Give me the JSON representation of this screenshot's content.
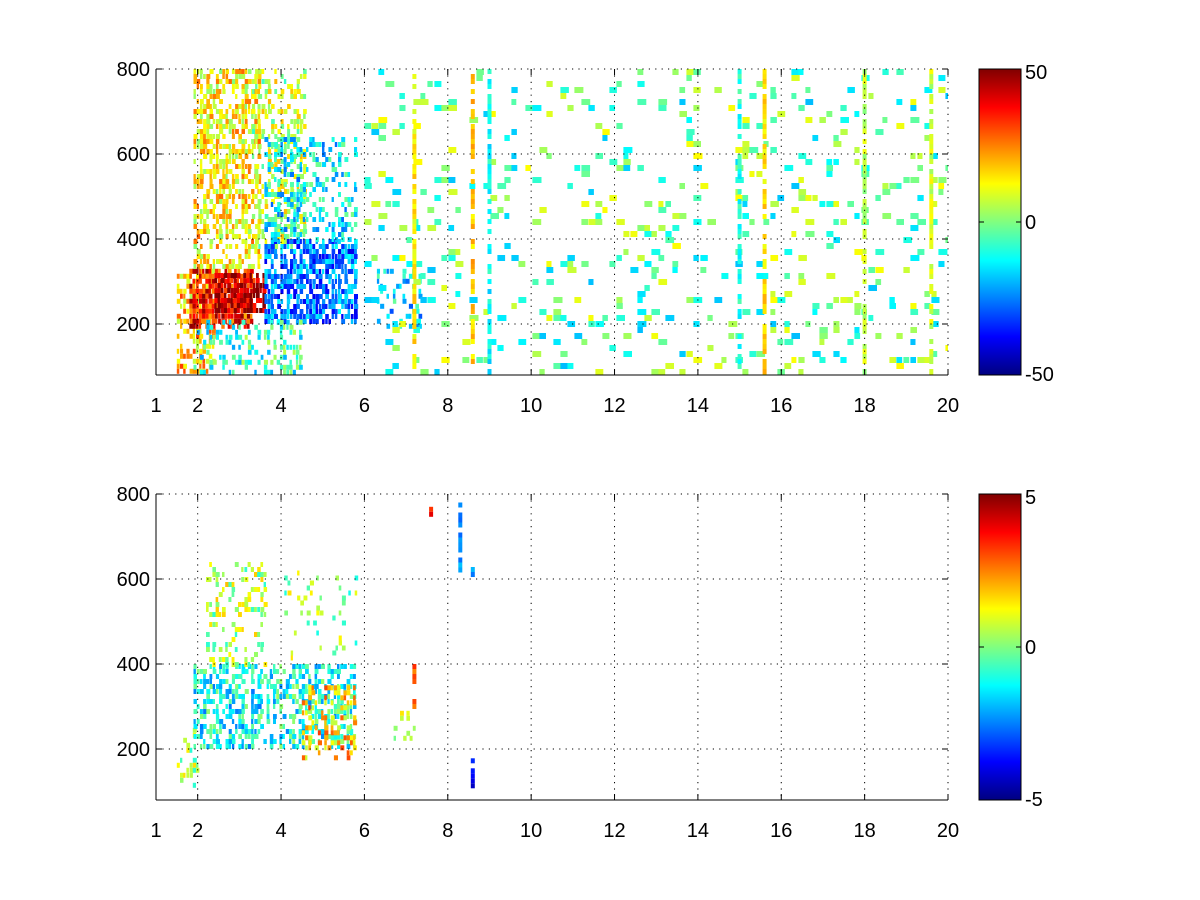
{
  "chart_data": [
    {
      "type": "heatmap",
      "title": "",
      "xlabel": "",
      "ylabel": "",
      "xlim": [
        1,
        20
      ],
      "ylim": [
        80,
        800
      ],
      "x_ticks": [
        "1",
        "2",
        "4",
        "6",
        "8",
        "10",
        "12",
        "14",
        "16",
        "18",
        "20"
      ],
      "x_tick_values": [
        1,
        2,
        4,
        6,
        8,
        10,
        12,
        14,
        16,
        18,
        20
      ],
      "y_ticks": [
        "200",
        "400",
        "600",
        "800"
      ],
      "y_tick_values": [
        200,
        400,
        600,
        800
      ],
      "grid": true,
      "colormap": "jet",
      "colorbar": {
        "placement": "right",
        "min": -50,
        "max": 50,
        "tick_labels": [
          "50",
          "0",
          "-50"
        ],
        "tick_values": [
          50,
          0,
          -50
        ]
      },
      "regions": [
        {
          "x": [
            1.5,
            2.4
          ],
          "y": [
            90,
            330
          ],
          "value": 18,
          "density": 0.55
        },
        {
          "x": [
            1.8,
            3.3
          ],
          "y": [
            200,
            330
          ],
          "value": 35,
          "density": 0.8
        },
        {
          "x": [
            2.4,
            3.6
          ],
          "y": [
            230,
            320
          ],
          "value": 44,
          "density": 0.85
        },
        {
          "x": [
            1.9,
            3.5
          ],
          "y": [
            330,
            800
          ],
          "value": 14,
          "density": 0.55
        },
        {
          "x": [
            3.3,
            4.6
          ],
          "y": [
            380,
            800
          ],
          "value": 6,
          "density": 0.4
        },
        {
          "x": [
            3.6,
            5.8
          ],
          "y": [
            200,
            400
          ],
          "value": -26,
          "density": 0.65
        },
        {
          "x": [
            3.6,
            5.8
          ],
          "y": [
            400,
            640
          ],
          "value": -14,
          "density": 0.35
        },
        {
          "x": [
            1.9,
            4.5
          ],
          "y": [
            90,
            210
          ],
          "value": -8,
          "density": 0.3
        },
        {
          "x": [
            6.3,
            7.3
          ],
          "y": [
            200,
            330
          ],
          "value": -16,
          "density": 0.3
        },
        {
          "x": [
            6.0,
            20.0
          ],
          "y": [
            80,
            800
          ],
          "value": -3,
          "density": 0.12
        }
      ],
      "streaks": [
        {
          "x": 7.2,
          "value": 14
        },
        {
          "x": 8.6,
          "value": 18
        },
        {
          "x": 9.0,
          "value": -12
        },
        {
          "x": 15.0,
          "value": -10
        },
        {
          "x": 15.6,
          "value": 16
        },
        {
          "x": 18.0,
          "value": 6
        },
        {
          "x": 19.6,
          "value": 8
        }
      ]
    },
    {
      "type": "heatmap",
      "title": "",
      "xlabel": "",
      "ylabel": "",
      "xlim": [
        1,
        20
      ],
      "ylim": [
        80,
        800
      ],
      "x_ticks": [
        "1",
        "2",
        "4",
        "6",
        "8",
        "10",
        "12",
        "14",
        "16",
        "18",
        "20"
      ],
      "x_tick_values": [
        1,
        2,
        4,
        6,
        8,
        10,
        12,
        14,
        16,
        18,
        20
      ],
      "y_ticks": [
        "200",
        "400",
        "600",
        "800"
      ],
      "y_tick_values": [
        200,
        400,
        600,
        800
      ],
      "grid": true,
      "colormap": "jet",
      "colorbar": {
        "placement": "right",
        "min": -5,
        "max": 5,
        "tick_labels": [
          "5",
          "0",
          "-5"
        ],
        "tick_values": [
          5,
          0,
          -5
        ]
      },
      "regions": [
        {
          "x": [
            1.5,
            2.0
          ],
          "y": [
            110,
            250
          ],
          "value": 0.5,
          "density": 0.3
        },
        {
          "x": [
            1.9,
            3.5
          ],
          "y": [
            200,
            400
          ],
          "value": -1.2,
          "density": 0.55
        },
        {
          "x": [
            2.2,
            3.6
          ],
          "y": [
            400,
            640
          ],
          "value": 0.5,
          "density": 0.25
        },
        {
          "x": [
            3.5,
            5.8
          ],
          "y": [
            200,
            400
          ],
          "value": -1.0,
          "density": 0.45
        },
        {
          "x": [
            4.5,
            5.8
          ],
          "y": [
            180,
            350
          ],
          "value": 1.8,
          "density": 0.35
        },
        {
          "x": [
            4.0,
            5.8
          ],
          "y": [
            400,
            620
          ],
          "value": 0.3,
          "density": 0.08
        },
        {
          "x": [
            6.7,
            7.2
          ],
          "y": [
            220,
            290
          ],
          "value": 0.8,
          "density": 0.3
        }
      ],
      "streaks": [
        {
          "x": 7.2,
          "value": 3.0,
          "y": [
            300,
            400
          ]
        },
        {
          "x": 7.6,
          "value": 3.6,
          "y": [
            740,
            770
          ]
        },
        {
          "x": 8.3,
          "value": -2.4,
          "y": [
            620,
            780
          ]
        },
        {
          "x": 8.6,
          "value": -3.8,
          "y": [
            110,
            190
          ]
        },
        {
          "x": 8.6,
          "value": -2.0,
          "y": [
            590,
            640
          ]
        }
      ]
    }
  ]
}
